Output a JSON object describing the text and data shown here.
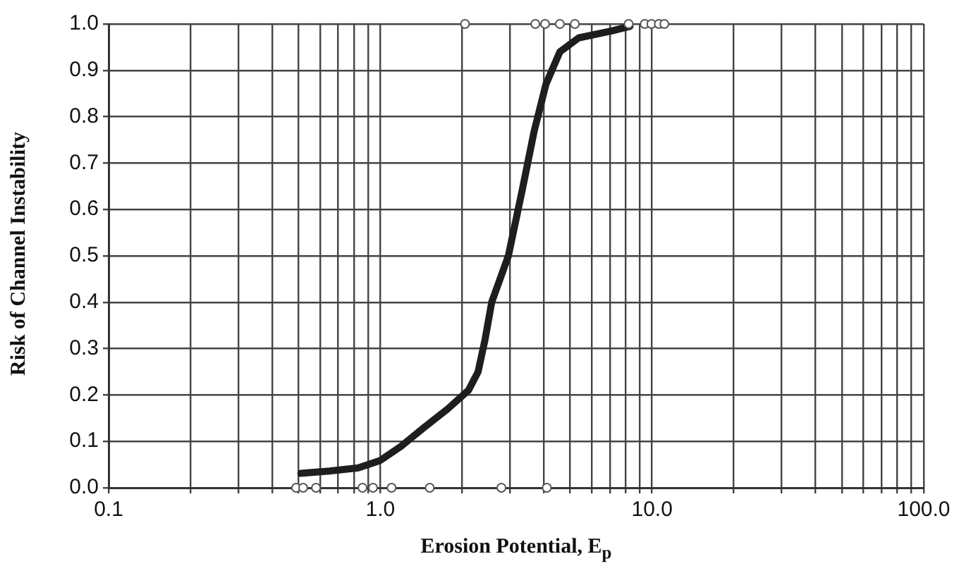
{
  "chart_data": {
    "type": "line",
    "xlabel": "Erosion Potential, E$_{p}$",
    "ylabel": "Risk of Channel Instability",
    "log": "x",
    "grid": true,
    "xlim": [
      0.1,
      100
    ],
    "ylim": [
      0,
      1
    ],
    "xticks": [
      {
        "value": 0.1,
        "label": "0.1"
      },
      {
        "value": 0.2,
        "label": null
      },
      {
        "value": 0.3,
        "label": null
      },
      {
        "value": 0.4,
        "label": null
      },
      {
        "value": 0.5,
        "label": null
      },
      {
        "value": 0.6,
        "label": null
      },
      {
        "value": 0.7,
        "label": null
      },
      {
        "value": 0.8,
        "label": null
      },
      {
        "value": 0.9,
        "label": null
      },
      {
        "value": 1,
        "label": "1.0"
      },
      {
        "value": 2,
        "label": null
      },
      {
        "value": 3,
        "label": null
      },
      {
        "value": 4,
        "label": null
      },
      {
        "value": 5,
        "label": null
      },
      {
        "value": 6,
        "label": null
      },
      {
        "value": 7,
        "label": null
      },
      {
        "value": 8,
        "label": null
      },
      {
        "value": 9,
        "label": null
      },
      {
        "value": 10,
        "label": "10.0"
      },
      {
        "value": 20,
        "label": null
      },
      {
        "value": 30,
        "label": null
      },
      {
        "value": 40,
        "label": null
      },
      {
        "value": 50,
        "label": null
      },
      {
        "value": 60,
        "label": null
      },
      {
        "value": 70,
        "label": null
      },
      {
        "value": 80,
        "label": null
      },
      {
        "value": 90,
        "label": null
      },
      {
        "value": 100,
        "label": "100.0"
      }
    ],
    "yticks": [
      {
        "value": 0,
        "label": "0.0"
      },
      {
        "value": 0.1,
        "label": "0.1"
      },
      {
        "value": 0.2,
        "label": "0.2"
      },
      {
        "value": 0.3,
        "label": "0.3"
      },
      {
        "value": 0.4,
        "label": "0.4"
      },
      {
        "value": 0.5,
        "label": "0.5"
      },
      {
        "value": 0.6,
        "label": "0.6"
      },
      {
        "value": 0.7,
        "label": "0.7"
      },
      {
        "value": 0.8,
        "label": "0.8"
      },
      {
        "value": 0.9,
        "label": "0.9"
      },
      {
        "value": 1,
        "label": "1.0"
      }
    ],
    "series": [
      {
        "type": "line",
        "color": "#1e1e1e",
        "marker": "none",
        "x": [
          0.51,
          0.65,
          0.83,
          1.0,
          1.19,
          1.45,
          1.77,
          2.11,
          2.29,
          2.43,
          2.57,
          2.96,
          3.34,
          3.68,
          4.07,
          4.58,
          5.37,
          7.1,
          8.3
        ],
        "values": [
          0.031,
          0.036,
          0.043,
          0.059,
          0.089,
          0.13,
          0.17,
          0.21,
          0.25,
          0.32,
          0.4,
          0.5,
          0.646,
          0.768,
          0.87,
          0.94,
          0.97,
          0.985,
          0.995
        ]
      },
      {
        "type": "scatter",
        "color": "#555555",
        "marker": "circle",
        "x": [
          2.05,
          3.72,
          4.04,
          4.58,
          5.2,
          8.2,
          9.4,
          9.95,
          10.6,
          11.1
        ],
        "values": [
          1,
          1,
          1,
          1,
          1,
          1,
          1,
          1,
          1,
          1
        ]
      },
      {
        "type": "scatter",
        "color": "#555555",
        "marker": "circle",
        "x": [
          0.49,
          0.52,
          0.58,
          0.86,
          0.94,
          1.1,
          1.52,
          2.79,
          4.1
        ],
        "values": [
          0,
          0,
          0,
          0,
          0,
          0,
          0,
          0,
          0
        ]
      }
    ]
  }
}
